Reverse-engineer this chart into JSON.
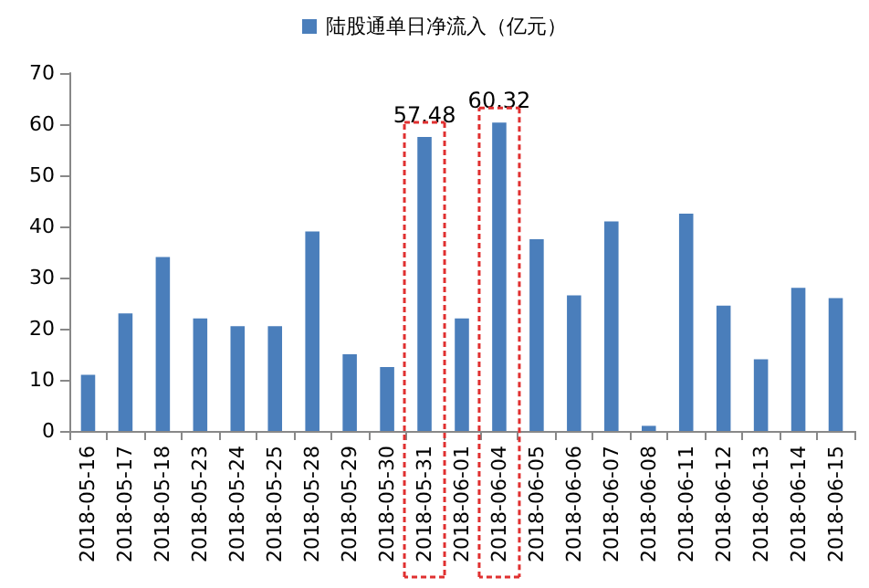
{
  "chart_data": {
    "type": "bar",
    "categories": [
      "2018-05-16",
      "2018-05-17",
      "2018-05-18",
      "2018-05-23",
      "2018-05-24",
      "2018-05-25",
      "2018-05-28",
      "2018-05-29",
      "2018-05-30",
      "2018-05-31",
      "2018-06-01",
      "2018-06-04",
      "2018-06-05",
      "2018-06-06",
      "2018-06-07",
      "2018-06-08",
      "2018-06-11",
      "2018-06-12",
      "2018-06-13",
      "2018-06-14",
      "2018-06-15"
    ],
    "series": [
      {
        "name": "陆股通单日净流入（亿元）",
        "color": "#4a7ebb",
        "values": [
          11,
          23,
          34,
          22,
          20.5,
          20.5,
          39,
          15,
          12.5,
          57.48,
          22,
          60.32,
          37.5,
          26.5,
          41,
          1,
          42.5,
          24.5,
          14,
          28,
          26
        ],
        "value_labels": [
          null,
          null,
          null,
          null,
          null,
          null,
          null,
          null,
          null,
          "57.48",
          null,
          "60.32",
          null,
          null,
          null,
          null,
          null,
          null,
          null,
          null,
          null
        ]
      }
    ],
    "ylim": [
      0,
      70
    ],
    "yticks": [
      0,
      10,
      20,
      30,
      40,
      50,
      60,
      70
    ],
    "grid": false,
    "legend": "top"
  }
}
